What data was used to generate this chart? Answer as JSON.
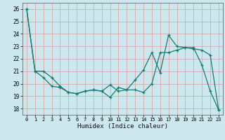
{
  "title": "",
  "xlabel": "Humidex (Indice chaleur)",
  "background_color": "#cce8ee",
  "grid_color": "#d4a8a8",
  "line_color": "#1a7a6e",
  "xlim": [
    -0.5,
    23.5
  ],
  "ylim": [
    17.5,
    26.5
  ],
  "yticks": [
    18,
    19,
    20,
    21,
    22,
    23,
    24,
    25,
    26
  ],
  "xticks": [
    0,
    1,
    2,
    3,
    4,
    5,
    6,
    7,
    8,
    9,
    10,
    11,
    12,
    13,
    14,
    15,
    16,
    17,
    18,
    19,
    20,
    21,
    22,
    23
  ],
  "line1_x": [
    0,
    1,
    2,
    3,
    4,
    5,
    6,
    7,
    8,
    9,
    10,
    11,
    12,
    13,
    14,
    15,
    16,
    17,
    18,
    19,
    20,
    21,
    22,
    23
  ],
  "line1_y": [
    26.0,
    21.0,
    20.5,
    19.8,
    19.7,
    19.3,
    19.2,
    19.4,
    19.5,
    19.4,
    18.9,
    19.7,
    19.5,
    20.3,
    21.1,
    22.5,
    20.9,
    23.9,
    23.0,
    22.9,
    22.9,
    21.5,
    19.4,
    17.9
  ],
  "line2_x": [
    0,
    1,
    2,
    3,
    4,
    5,
    6,
    7,
    8,
    9,
    10,
    11,
    12,
    13,
    14,
    15,
    16,
    17,
    18,
    19,
    20,
    21,
    22,
    23
  ],
  "line2_y": [
    26.0,
    21.0,
    21.0,
    20.5,
    19.8,
    19.3,
    19.2,
    19.4,
    19.5,
    19.4,
    19.9,
    19.4,
    19.5,
    19.5,
    19.3,
    20.0,
    22.5,
    22.5,
    22.7,
    22.9,
    22.8,
    22.7,
    22.3,
    17.9
  ]
}
